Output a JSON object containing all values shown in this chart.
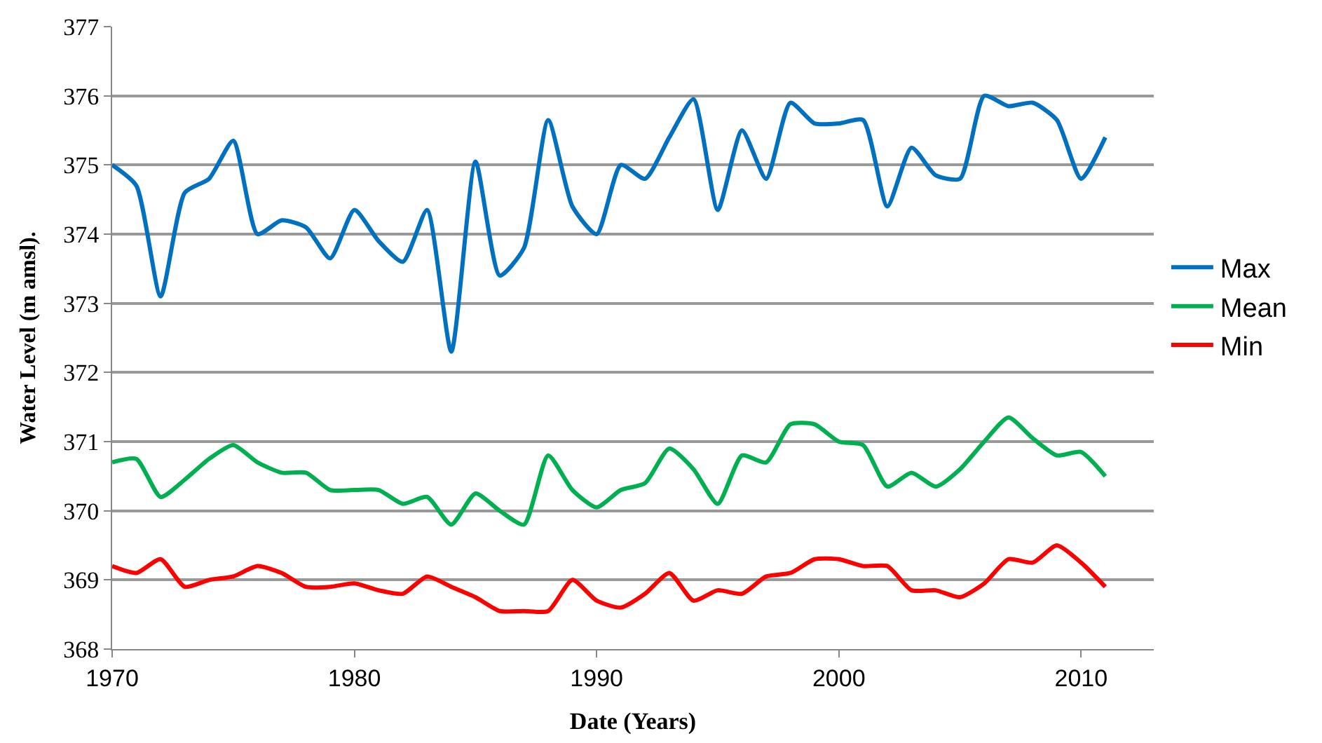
{
  "chart_data": {
    "type": "line",
    "xlabel": "Date (Years)",
    "ylabel": "Water Level (m amsl).",
    "x": [
      1970,
      1971,
      1972,
      1973,
      1974,
      1975,
      1976,
      1977,
      1978,
      1979,
      1980,
      1981,
      1982,
      1983,
      1984,
      1985,
      1986,
      1987,
      1988,
      1989,
      1990,
      1991,
      1992,
      1993,
      1994,
      1995,
      1996,
      1997,
      1998,
      1999,
      2000,
      2001,
      2002,
      2003,
      2004,
      2005,
      2006,
      2007,
      2008,
      2009,
      2010,
      2011
    ],
    "series": [
      {
        "name": "Max",
        "color": "#0070c0",
        "values": [
          375.0,
          374.7,
          373.1,
          374.6,
          374.8,
          375.35,
          374.0,
          374.2,
          374.1,
          373.65,
          374.35,
          373.9,
          373.6,
          374.35,
          372.3,
          375.05,
          373.4,
          373.8,
          375.65,
          374.4,
          374.0,
          375.0,
          374.8,
          375.4,
          375.95,
          374.35,
          375.5,
          374.8,
          375.9,
          375.6,
          375.6,
          375.65,
          374.4,
          375.25,
          374.85,
          374.8,
          376.0,
          375.85,
          375.9,
          375.65,
          374.8,
          375.4
        ]
      },
      {
        "name": "Mean",
        "color": "#00b050",
        "values": [
          370.7,
          370.75,
          370.2,
          370.45,
          370.75,
          370.95,
          370.7,
          370.55,
          370.55,
          370.3,
          370.3,
          370.3,
          370.1,
          370.2,
          369.8,
          370.25,
          370.0,
          369.8,
          370.8,
          370.3,
          370.05,
          370.3,
          370.4,
          370.9,
          370.6,
          370.1,
          370.8,
          370.7,
          371.25,
          371.25,
          371.0,
          370.95,
          370.35,
          370.55,
          370.35,
          370.6,
          371.0,
          371.35,
          371.05,
          370.8,
          370.85,
          370.5
        ]
      },
      {
        "name": "Min",
        "color": "#ff0000",
        "values": [
          369.2,
          369.1,
          369.3,
          368.9,
          369.0,
          369.05,
          369.2,
          369.1,
          368.9,
          368.9,
          368.95,
          368.85,
          368.8,
          369.05,
          368.9,
          368.75,
          368.55,
          368.55,
          368.55,
          369.0,
          368.7,
          368.6,
          368.8,
          369.1,
          368.7,
          368.85,
          368.8,
          369.05,
          369.1,
          369.3,
          369.3,
          369.2,
          369.2,
          368.85,
          368.85,
          368.75,
          368.95,
          369.3,
          369.25,
          369.5,
          369.25,
          368.9
        ]
      }
    ],
    "xlim": [
      1970,
      2013
    ],
    "xticks": [
      1970,
      1980,
      1990,
      2000,
      2010
    ],
    "ylim": [
      368,
      377
    ],
    "yticks": [
      368,
      369,
      370,
      371,
      372,
      373,
      374,
      375,
      376,
      377
    ],
    "grid": "y",
    "legend": "right",
    "marker": "none",
    "line_style": "solid"
  }
}
